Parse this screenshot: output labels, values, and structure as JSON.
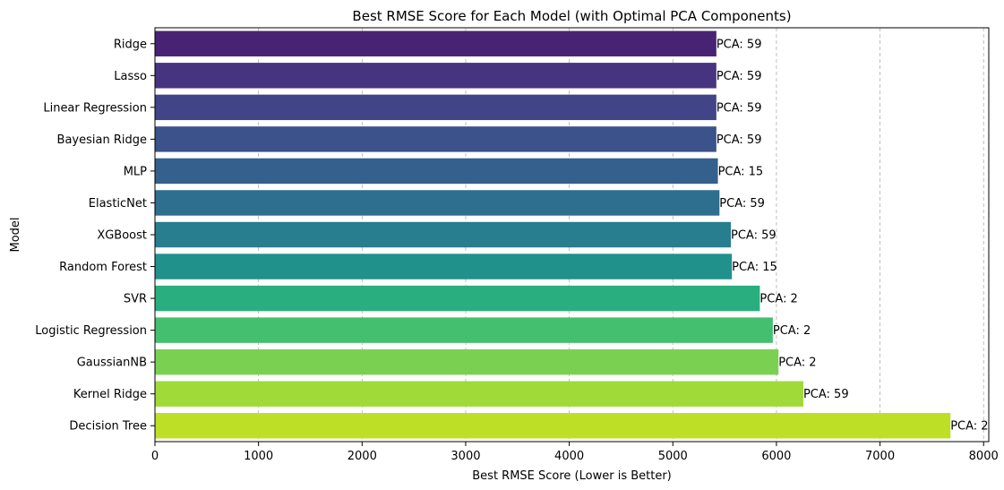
{
  "chart_data": {
    "type": "bar",
    "orientation": "horizontal",
    "title": "Best RMSE Score for Each Model (with Optimal PCA Components)",
    "xlabel": "Best RMSE Score (Lower is Better)",
    "ylabel": "Model",
    "xlim": [
      0,
      8050
    ],
    "xticks": [
      0,
      1000,
      2000,
      3000,
      4000,
      5000,
      6000,
      7000,
      8000
    ],
    "grid": "x-axis dashed",
    "categories": [
      "Ridge",
      "Lasso",
      "Linear Regression",
      "Bayesian Ridge",
      "MLP",
      "ElasticNet",
      "XGBoost",
      "Random Forest",
      "SVR",
      "Logistic Regression",
      "GaussianNB",
      "Kernel Ridge",
      "Decision Tree"
    ],
    "values": [
      5420,
      5420,
      5420,
      5420,
      5435,
      5450,
      5560,
      5570,
      5840,
      5965,
      6020,
      6260,
      7680
    ],
    "annotations": [
      "PCA: 59",
      "PCA: 59",
      "PCA: 59",
      "PCA: 59",
      "PCA: 15",
      "PCA: 59",
      "PCA: 59",
      "PCA: 15",
      "PCA: 2",
      "PCA: 2",
      "PCA: 2",
      "PCA: 59",
      "PCA: 2"
    ],
    "colors": [
      "#482374",
      "#463480",
      "#414487",
      "#3b528b",
      "#355f8d",
      "#2e6e8e",
      "#287d8e",
      "#21918c",
      "#29af7f",
      "#44bf70",
      "#7ad151",
      "#a0da39",
      "#bddf26"
    ]
  }
}
